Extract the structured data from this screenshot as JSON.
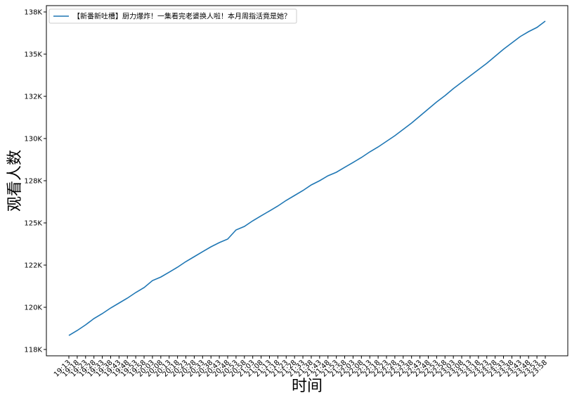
{
  "chart_data": {
    "type": "line",
    "xlabel": "时间",
    "ylabel": "观看人数",
    "categories": [
      "19:13",
      "19:18",
      "19:23",
      "19:28",
      "19:33",
      "19:38",
      "19:43",
      "19:48",
      "19:53",
      "19:58",
      "20:03",
      "20:08",
      "20:13",
      "20:18",
      "20:23",
      "20:28",
      "20:33",
      "20:38",
      "20:43",
      "20:48",
      "20:53",
      "20:58",
      "21:03",
      "21:08",
      "21:13",
      "21:18",
      "21:23",
      "21:28",
      "21:33",
      "21:38",
      "21:43",
      "21:48",
      "21:53",
      "21:58",
      "22:03",
      "22:08",
      "22:13",
      "22:18",
      "22:23",
      "22:28",
      "22:33",
      "22:38",
      "22:43",
      "22:48",
      "22:53",
      "22:58",
      "23:03",
      "23:08",
      "23:13",
      "23:18",
      "23:23",
      "23:28",
      "23:33",
      "23:38",
      "23:43",
      "23:48",
      "23:53",
      "23:58"
    ],
    "series": [
      {
        "name": "【新番新吐槽】厨力爆炸！一集看完老婆换人啦！本月周指活竟是她？",
        "color": "#1f77b4",
        "values": [
          118333,
          118625,
          118958,
          119333,
          119625,
          119958,
          120250,
          120542,
          120875,
          121167,
          121583,
          121792,
          122083,
          122375,
          122708,
          123000,
          123292,
          123583,
          123833,
          124042,
          124583,
          124792,
          125125,
          125417,
          125708,
          126000,
          126333,
          126625,
          126917,
          127250,
          127500,
          127792,
          128000,
          128292,
          128583,
          128875,
          129208,
          129500,
          129833,
          130167,
          130542,
          130917,
          131333,
          131750,
          132167,
          132542,
          132958,
          133333,
          133708,
          134083,
          134458,
          134875,
          135292,
          135667,
          136042,
          136333,
          136583,
          136958
        ]
      }
    ],
    "ylim": [
      117125,
      137875
    ],
    "yticks": [
      {
        "value": 117500,
        "label": "118K"
      },
      {
        "value": 120000,
        "label": "120K"
      },
      {
        "value": 122500,
        "label": "122K"
      },
      {
        "value": 125000,
        "label": "125K"
      },
      {
        "value": 127500,
        "label": "128K"
      },
      {
        "value": 130000,
        "label": "130K"
      },
      {
        "value": 132500,
        "label": "132K"
      },
      {
        "value": 135000,
        "label": "135K"
      },
      {
        "value": 137500,
        "label": "138K"
      }
    ],
    "grid": false,
    "legend": "upper left"
  }
}
